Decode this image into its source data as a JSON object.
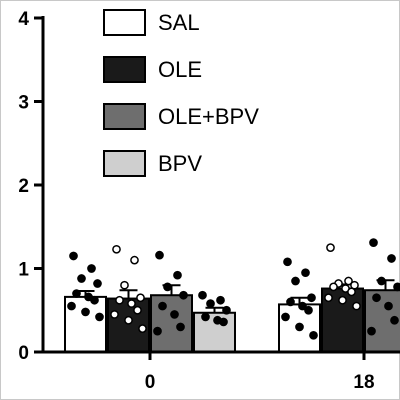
{
  "chart_data": {
    "type": "bar",
    "title": "",
    "xlabel": "",
    "ylabel": "",
    "ylim": [
      0,
      4
    ],
    "yticks": [
      0,
      1,
      2,
      3,
      4
    ],
    "ytick_labels": [
      "0",
      "1",
      "2",
      "3",
      "4"
    ],
    "grid": false,
    "legend_position": "top-center",
    "categories": [
      "0",
      "18"
    ],
    "series": [
      {
        "name": "SAL",
        "color": "#ffffff",
        "point_fill": "#000000",
        "values": [
          0.66,
          0.57
        ],
        "errors": [
          0.07,
          0.08
        ],
        "points": [
          [
            1.15,
            1.0,
            0.88,
            0.82,
            0.7,
            0.66,
            0.62,
            0.55,
            0.48,
            0.42
          ],
          [
            1.08,
            0.95,
            0.85,
            0.65,
            0.6,
            0.55,
            0.5,
            0.42,
            0.3,
            0.2
          ]
        ]
      },
      {
        "name": "OLE",
        "color": "#1a1a1a",
        "point_fill": "#ffffff",
        "values": [
          0.64,
          0.76
        ],
        "errors": [
          0.1,
          0.05
        ],
        "points": [
          [
            1.23,
            1.1,
            0.8,
            0.65,
            0.62,
            0.58,
            0.5,
            0.45,
            0.38,
            0.28
          ],
          [
            1.25,
            0.85,
            0.82,
            0.8,
            0.78,
            0.76,
            0.72,
            0.65,
            0.62,
            0.55
          ]
        ]
      },
      {
        "name": "OLE+BPV",
        "color": "#6e6e6e",
        "point_fill": "#000000",
        "values": [
          0.68,
          0.74
        ],
        "errors": [
          0.12,
          0.12
        ],
        "points": [
          [
            1.16,
            0.92,
            0.78,
            0.68,
            0.55,
            0.45,
            0.3,
            0.25
          ],
          [
            1.31,
            1.12,
            0.85,
            0.78,
            0.65,
            0.55,
            0.38,
            0.25
          ]
        ]
      },
      {
        "name": "BPV",
        "color": "#cfcfcf",
        "point_fill": "#000000",
        "values": [
          0.47,
          null
        ],
        "errors": [
          0.06,
          null
        ],
        "points": [
          [
            0.68,
            0.62,
            0.58,
            0.5,
            0.42,
            0.38,
            0.36
          ],
          []
        ]
      }
    ]
  }
}
